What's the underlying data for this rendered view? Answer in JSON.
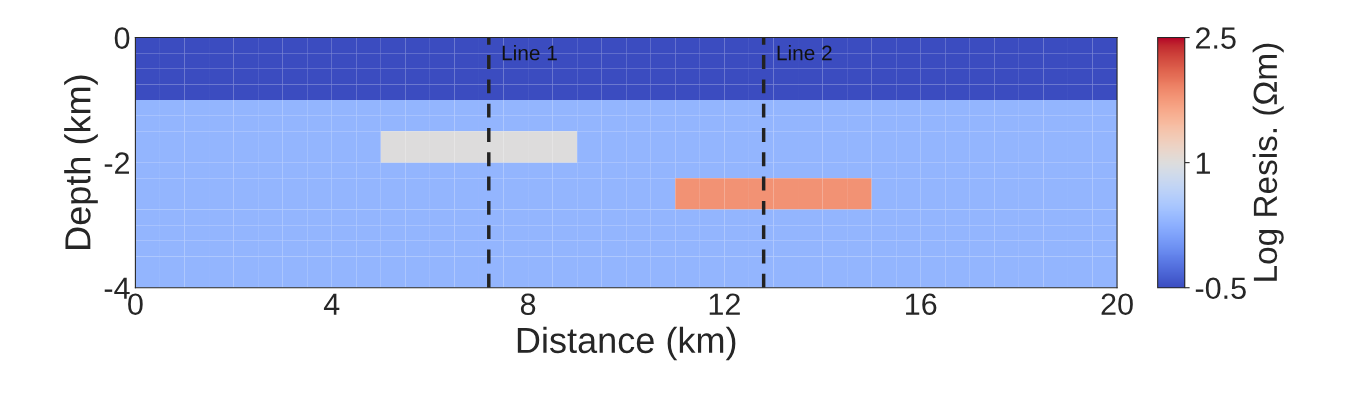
{
  "chart_data": {
    "type": "heatmap",
    "xlabel": "Distance (km)",
    "ylabel": "Depth (km)",
    "clabel": "Log Resis. (Ωm)",
    "x": [
      0.25,
      0.75,
      1.25,
      1.75,
      2.25,
      2.75,
      3.25,
      3.75,
      4.25,
      4.75,
      5.25,
      5.75,
      6.25,
      6.75,
      7.25,
      7.75,
      8.25,
      8.75,
      9.25,
      9.75,
      10.25,
      10.75,
      11.25,
      11.75,
      12.25,
      12.75,
      13.25,
      13.75,
      14.25,
      14.75,
      15.25,
      15.75,
      16.25,
      16.75,
      17.25,
      17.75,
      18.25,
      18.75,
      19.25,
      19.75
    ],
    "y": [
      -0.125,
      -0.375,
      -0.625,
      -0.875,
      -1.125,
      -1.375,
      -1.625,
      -1.875,
      -2.125,
      -2.375,
      -2.625,
      -2.875,
      -3.125,
      -3.375,
      -3.625,
      -3.875
    ],
    "cells": [
      [
        -0.5,
        -0.5,
        -0.5,
        -0.5,
        -0.5,
        -0.5,
        -0.5,
        -0.5,
        -0.5,
        -0.5,
        -0.5,
        -0.5,
        -0.5,
        -0.5,
        -0.5,
        -0.5,
        -0.5,
        -0.5,
        -0.5,
        -0.5,
        -0.5,
        -0.5,
        -0.5,
        -0.5,
        -0.5,
        -0.5,
        -0.5,
        -0.5,
        -0.5,
        -0.5,
        -0.5,
        -0.5,
        -0.5,
        -0.5,
        -0.5,
        -0.5,
        -0.5,
        -0.5,
        -0.5,
        -0.5
      ],
      [
        -0.5,
        -0.5,
        -0.5,
        -0.5,
        -0.5,
        -0.5,
        -0.5,
        -0.5,
        -0.5,
        -0.5,
        -0.5,
        -0.5,
        -0.5,
        -0.5,
        -0.5,
        -0.5,
        -0.5,
        -0.5,
        -0.5,
        -0.5,
        -0.5,
        -0.5,
        -0.5,
        -0.5,
        -0.5,
        -0.5,
        -0.5,
        -0.5,
        -0.5,
        -0.5,
        -0.5,
        -0.5,
        -0.5,
        -0.5,
        -0.5,
        -0.5,
        -0.5,
        -0.5,
        -0.5,
        -0.5
      ],
      [
        -0.5,
        -0.5,
        -0.5,
        -0.5,
        -0.5,
        -0.5,
        -0.5,
        -0.5,
        -0.5,
        -0.5,
        -0.5,
        -0.5,
        -0.5,
        -0.5,
        -0.5,
        -0.5,
        -0.5,
        -0.5,
        -0.5,
        -0.5,
        -0.5,
        -0.5,
        -0.5,
        -0.5,
        -0.5,
        -0.5,
        -0.5,
        -0.5,
        -0.5,
        -0.5,
        -0.5,
        -0.5,
        -0.5,
        -0.5,
        -0.5,
        -0.5,
        -0.5,
        -0.5,
        -0.5,
        -0.5
      ],
      [
        -0.5,
        -0.5,
        -0.5,
        -0.5,
        -0.5,
        -0.5,
        -0.5,
        -0.5,
        -0.5,
        -0.5,
        -0.5,
        -0.5,
        -0.5,
        -0.5,
        -0.5,
        -0.5,
        -0.5,
        -0.5,
        -0.5,
        -0.5,
        -0.5,
        -0.5,
        -0.5,
        -0.5,
        -0.5,
        -0.5,
        -0.5,
        -0.5,
        -0.5,
        -0.5,
        -0.5,
        -0.5,
        -0.5,
        -0.5,
        -0.5,
        -0.5,
        -0.5,
        -0.5,
        -0.5,
        -0.5
      ],
      [
        0.3,
        0.3,
        0.3,
        0.3,
        0.3,
        0.3,
        0.3,
        0.3,
        0.3,
        0.3,
        0.3,
        0.3,
        0.3,
        0.3,
        0.3,
        0.3,
        0.3,
        0.3,
        0.3,
        0.3,
        0.3,
        0.3,
        0.3,
        0.3,
        0.3,
        0.3,
        0.3,
        0.3,
        0.3,
        0.3,
        0.3,
        0.3,
        0.3,
        0.3,
        0.3,
        0.3,
        0.3,
        0.3,
        0.3,
        0.3
      ],
      [
        0.3,
        0.3,
        0.3,
        0.3,
        0.3,
        0.3,
        0.3,
        0.3,
        0.3,
        0.3,
        0.3,
        0.3,
        0.3,
        0.3,
        0.3,
        0.3,
        0.3,
        0.3,
        0.3,
        0.3,
        0.3,
        0.3,
        0.3,
        0.3,
        0.3,
        0.3,
        0.3,
        0.3,
        0.3,
        0.3,
        0.3,
        0.3,
        0.3,
        0.3,
        0.3,
        0.3,
        0.3,
        0.3,
        0.3,
        0.3
      ],
      [
        0.3,
        0.3,
        0.3,
        0.3,
        0.3,
        0.3,
        0.3,
        0.3,
        0.3,
        0.3,
        1,
        1,
        1,
        1,
        1,
        1,
        1,
        1,
        0.3,
        0.3,
        0.3,
        0.3,
        0.3,
        0.3,
        0.3,
        0.3,
        0.3,
        0.3,
        0.3,
        0.3,
        0.3,
        0.3,
        0.3,
        0.3,
        0.3,
        0.3,
        0.3,
        0.3,
        0.3,
        0.3
      ],
      [
        0.3,
        0.3,
        0.3,
        0.3,
        0.3,
        0.3,
        0.3,
        0.3,
        0.3,
        0.3,
        1,
        1,
        1,
        1,
        1,
        1,
        1,
        1,
        0.3,
        0.3,
        0.3,
        0.3,
        0.3,
        0.3,
        0.3,
        0.3,
        0.3,
        0.3,
        0.3,
        0.3,
        0.3,
        0.3,
        0.3,
        0.3,
        0.3,
        0.3,
        0.3,
        0.3,
        0.3,
        0.3
      ],
      [
        0.3,
        0.3,
        0.3,
        0.3,
        0.3,
        0.3,
        0.3,
        0.3,
        0.3,
        0.3,
        0.3,
        0.3,
        0.3,
        0.3,
        0.3,
        0.3,
        0.3,
        0.3,
        0.3,
        0.3,
        0.3,
        0.3,
        0.3,
        0.3,
        0.3,
        0.3,
        0.3,
        0.3,
        0.3,
        0.3,
        0.3,
        0.3,
        0.3,
        0.3,
        0.3,
        0.3,
        0.3,
        0.3,
        0.3,
        0.3
      ],
      [
        0.3,
        0.3,
        0.3,
        0.3,
        0.3,
        0.3,
        0.3,
        0.3,
        0.3,
        0.3,
        0.3,
        0.3,
        0.3,
        0.3,
        0.3,
        0.3,
        0.3,
        0.3,
        0.3,
        0.3,
        0.3,
        0.3,
        1.8,
        1.8,
        1.8,
        1.8,
        1.8,
        1.8,
        1.8,
        1.8,
        0.3,
        0.3,
        0.3,
        0.3,
        0.3,
        0.3,
        0.3,
        0.3,
        0.3,
        0.3
      ],
      [
        0.3,
        0.3,
        0.3,
        0.3,
        0.3,
        0.3,
        0.3,
        0.3,
        0.3,
        0.3,
        0.3,
        0.3,
        0.3,
        0.3,
        0.3,
        0.3,
        0.3,
        0.3,
        0.3,
        0.3,
        0.3,
        0.3,
        1.8,
        1.8,
        1.8,
        1.8,
        1.8,
        1.8,
        1.8,
        1.8,
        0.3,
        0.3,
        0.3,
        0.3,
        0.3,
        0.3,
        0.3,
        0.3,
        0.3,
        0.3
      ],
      [
        0.3,
        0.3,
        0.3,
        0.3,
        0.3,
        0.3,
        0.3,
        0.3,
        0.3,
        0.3,
        0.3,
        0.3,
        0.3,
        0.3,
        0.3,
        0.3,
        0.3,
        0.3,
        0.3,
        0.3,
        0.3,
        0.3,
        0.3,
        0.3,
        0.3,
        0.3,
        0.3,
        0.3,
        0.3,
        0.3,
        0.3,
        0.3,
        0.3,
        0.3,
        0.3,
        0.3,
        0.3,
        0.3,
        0.3,
        0.3
      ],
      [
        0.3,
        0.3,
        0.3,
        0.3,
        0.3,
        0.3,
        0.3,
        0.3,
        0.3,
        0.3,
        0.3,
        0.3,
        0.3,
        0.3,
        0.3,
        0.3,
        0.3,
        0.3,
        0.3,
        0.3,
        0.3,
        0.3,
        0.3,
        0.3,
        0.3,
        0.3,
        0.3,
        0.3,
        0.3,
        0.3,
        0.3,
        0.3,
        0.3,
        0.3,
        0.3,
        0.3,
        0.3,
        0.3,
        0.3,
        0.3
      ],
      [
        0.3,
        0.3,
        0.3,
        0.3,
        0.3,
        0.3,
        0.3,
        0.3,
        0.3,
        0.3,
        0.3,
        0.3,
        0.3,
        0.3,
        0.3,
        0.3,
        0.3,
        0.3,
        0.3,
        0.3,
        0.3,
        0.3,
        0.3,
        0.3,
        0.3,
        0.3,
        0.3,
        0.3,
        0.3,
        0.3,
        0.3,
        0.3,
        0.3,
        0.3,
        0.3,
        0.3,
        0.3,
        0.3,
        0.3,
        0.3
      ],
      [
        0.3,
        0.3,
        0.3,
        0.3,
        0.3,
        0.3,
        0.3,
        0.3,
        0.3,
        0.3,
        0.3,
        0.3,
        0.3,
        0.3,
        0.3,
        0.3,
        0.3,
        0.3,
        0.3,
        0.3,
        0.3,
        0.3,
        0.3,
        0.3,
        0.3,
        0.3,
        0.3,
        0.3,
        0.3,
        0.3,
        0.3,
        0.3,
        0.3,
        0.3,
        0.3,
        0.3,
        0.3,
        0.3,
        0.3,
        0.3
      ],
      [
        0.3,
        0.3,
        0.3,
        0.3,
        0.3,
        0.3,
        0.3,
        0.3,
        0.3,
        0.3,
        0.3,
        0.3,
        0.3,
        0.3,
        0.3,
        0.3,
        0.3,
        0.3,
        0.3,
        0.3,
        0.3,
        0.3,
        0.3,
        0.3,
        0.3,
        0.3,
        0.3,
        0.3,
        0.3,
        0.3,
        0.3,
        0.3,
        0.3,
        0.3,
        0.3,
        0.3,
        0.3,
        0.3,
        0.3,
        0.3
      ]
    ],
    "clim": [
      -0.5,
      2.5
    ],
    "cticks": [
      -0.5,
      1,
      2.5
    ],
    "xlim": [
      0,
      20
    ],
    "xticks": [
      0,
      4,
      8,
      12,
      16,
      20
    ],
    "ylim": [
      -4,
      0
    ],
    "yticks": [
      -4,
      -2,
      0
    ],
    "ref_lines": [
      {
        "axis": "x",
        "value": 7.2,
        "label": "Line 1",
        "color": "#222222",
        "line_style": "dashed"
      },
      {
        "axis": "x",
        "value": 12.8,
        "label": "Line 2",
        "color": "#222222",
        "line_style": "dashed"
      }
    ]
  }
}
